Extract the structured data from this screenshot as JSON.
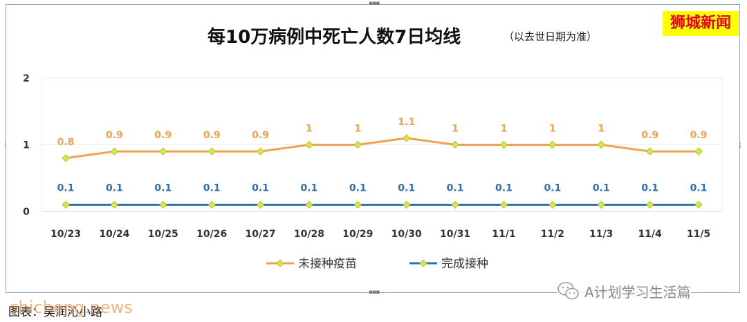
{
  "brand": {
    "label": "狮城新闻",
    "bg_color": "#ffff00",
    "text_color": "#e8001c"
  },
  "caption": "图表：吴润沁小路",
  "watermark": "shicheng.news",
  "wechat": {
    "name": "A计划学习生活篇",
    "icon": "wechat-icon"
  },
  "chart_data": {
    "type": "line",
    "title": "每10万病例中死亡人数7日均线",
    "subtitle": "（以去世日期为准）",
    "categories": [
      "10/23",
      "10/24",
      "10/25",
      "10/26",
      "10/27",
      "10/28",
      "10/29",
      "10/30",
      "10/31",
      "11/1",
      "11/2",
      "11/3",
      "11/4",
      "11/5"
    ],
    "series": [
      {
        "name": "未接种疫苗",
        "color": "#f0a050",
        "marker_color": "#d4e84a",
        "values": [
          0.8,
          0.9,
          0.9,
          0.9,
          0.9,
          1,
          1,
          1.1,
          1,
          1,
          1,
          1,
          0.9,
          0.9
        ]
      },
      {
        "name": "完成接种",
        "color": "#2f6fb0",
        "marker_color": "#d4e84a",
        "values": [
          0.1,
          0.1,
          0.1,
          0.1,
          0.1,
          0.1,
          0.1,
          0.1,
          0.1,
          0.1,
          0.1,
          0.1,
          0.1,
          0.1
        ]
      }
    ],
    "yticks": [
      "0",
      "1",
      "2"
    ],
    "ylim": [
      0,
      2
    ],
    "grid": true,
    "legend": "bottom"
  }
}
